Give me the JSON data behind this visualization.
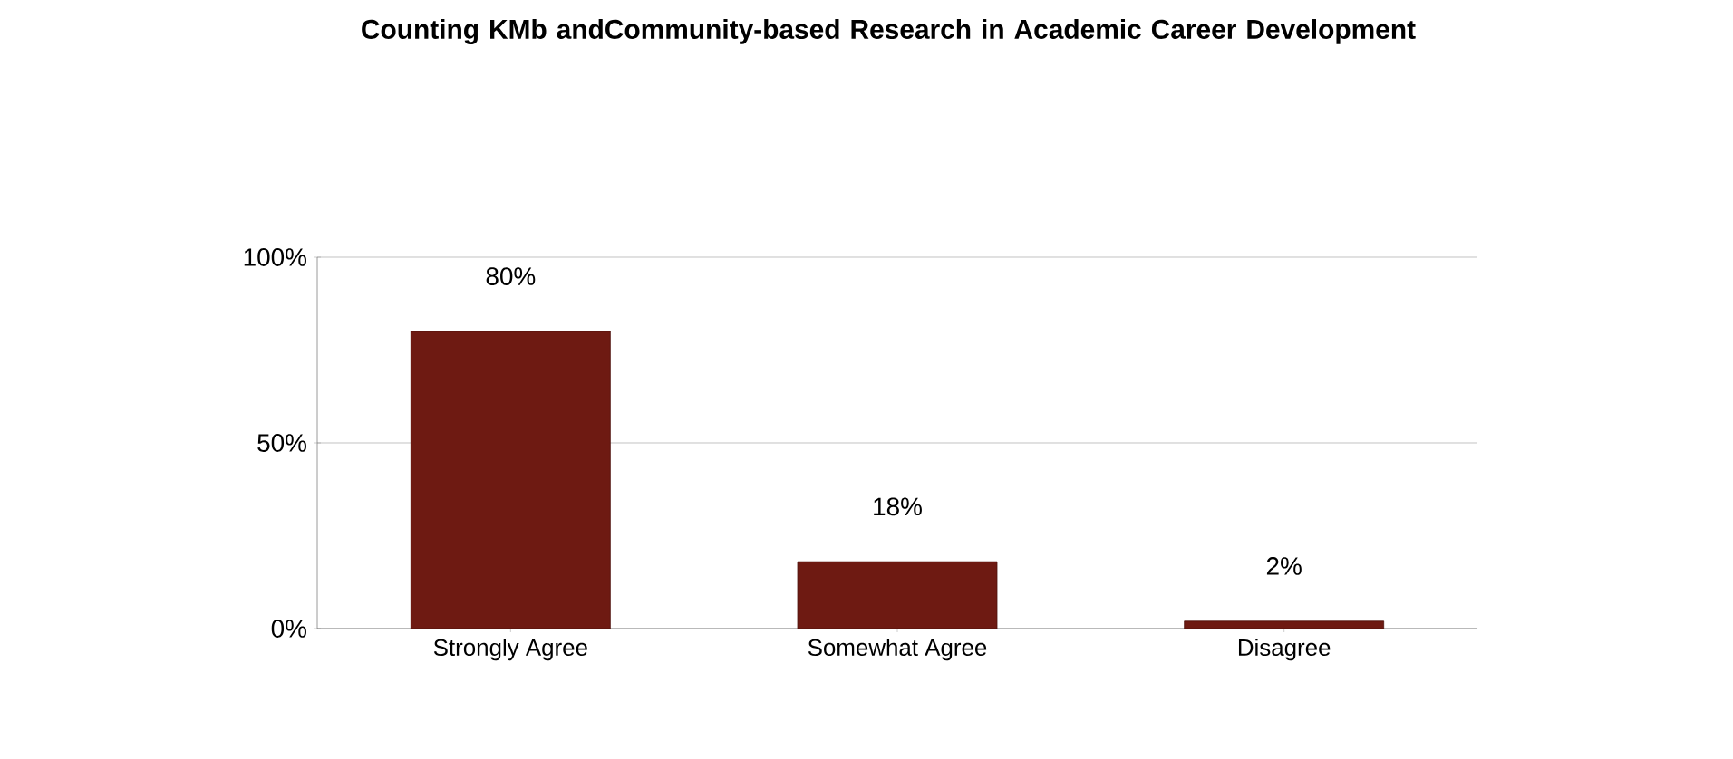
{
  "chart_data": {
    "type": "bar",
    "title": "Counting KMb andCommunity-based  Research in Academic Career Development",
    "categories": [
      "Strongly Agree",
      "Somewhat Agree",
      "Disagree"
    ],
    "values": [
      80,
      18,
      2
    ],
    "value_labels": [
      "80%",
      "18%",
      "2%"
    ],
    "color": "#6e1a12",
    "ylim": [
      0,
      100
    ],
    "yticks": [
      {
        "value": 0,
        "label": "0%"
      },
      {
        "value": 50,
        "label": "50%"
      },
      {
        "value": 100,
        "label": "100%"
      }
    ],
    "grid": "y"
  }
}
